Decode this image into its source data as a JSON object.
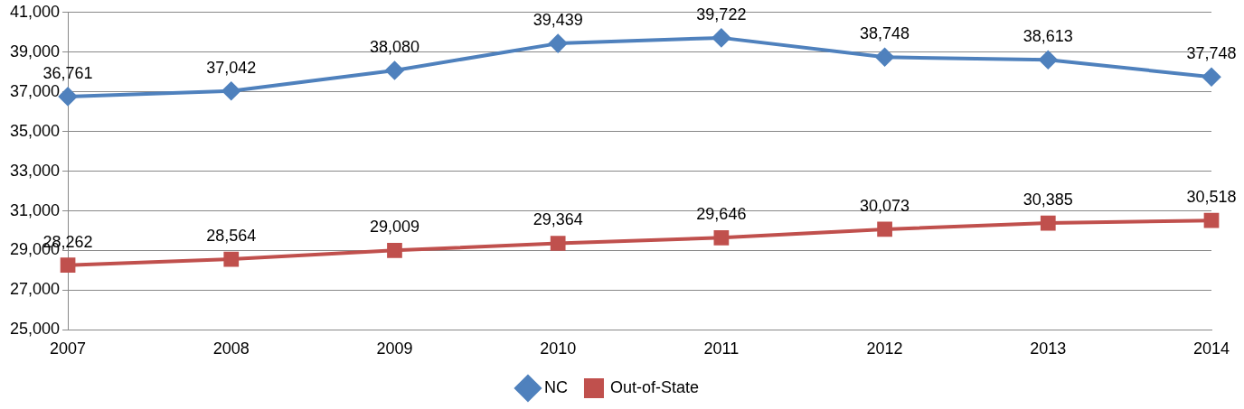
{
  "chart_data": {
    "type": "line",
    "categories": [
      "2007",
      "2008",
      "2009",
      "2010",
      "2011",
      "2012",
      "2013",
      "2014"
    ],
    "series": [
      {
        "name": "NC",
        "color": "#4f81bd",
        "marker": "diamond",
        "values": [
          36761,
          37042,
          38080,
          39439,
          39722,
          38748,
          38613,
          37748
        ],
        "value_labels": [
          "36,761",
          "37,042",
          "38,080",
          "39,439",
          "39,722",
          "38,748",
          "38,613",
          "37,748"
        ]
      },
      {
        "name": "Out-of-State",
        "color": "#c0504d",
        "marker": "square",
        "values": [
          28262,
          28564,
          29009,
          29364,
          29646,
          30073,
          30385,
          30518
        ],
        "value_labels": [
          "28,262",
          "28,564",
          "29,009",
          "29,364",
          "29,646",
          "30,073",
          "30,385",
          "30,518"
        ]
      }
    ],
    "ylim": [
      25000,
      41000
    ],
    "yticks": [
      {
        "value": 25000,
        "label": "25,000"
      },
      {
        "value": 27000,
        "label": "27,000"
      },
      {
        "value": 29000,
        "label": "29,000"
      },
      {
        "value": 31000,
        "label": "31,000"
      },
      {
        "value": 33000,
        "label": "33,000"
      },
      {
        "value": 35000,
        "label": "35,000"
      },
      {
        "value": 37000,
        "label": "37,000"
      },
      {
        "value": 39000,
        "label": "39,000"
      },
      {
        "value": 41000,
        "label": "41,000"
      }
    ],
    "grid": "y",
    "legend": "bottom",
    "line_style": "solid"
  }
}
